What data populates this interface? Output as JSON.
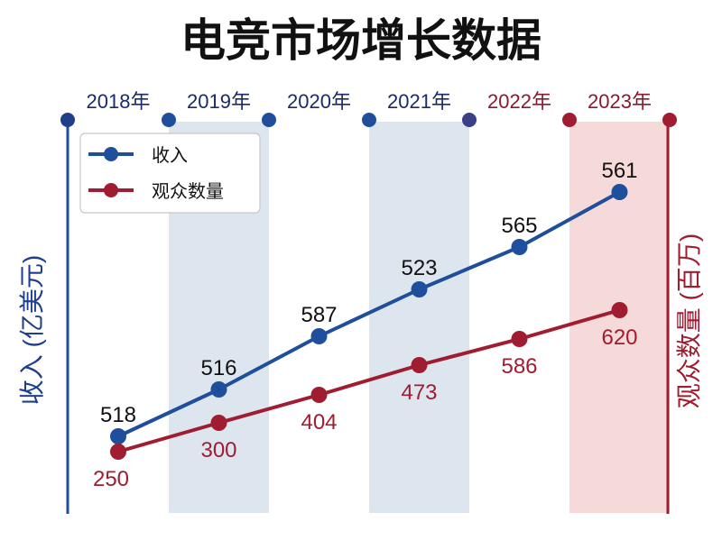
{
  "title": "电竞市场增长数据",
  "colors": {
    "revenue": "#1f4e9c",
    "audience": "#a01c30",
    "band_blue": "#dde6ef",
    "band_red": "#f6d9d9",
    "year_text_blue": "#1a2a6c",
    "year_text_red": "#8b1a2b"
  },
  "chart_data": {
    "type": "line",
    "title": "电竞市场增长数据",
    "categories": [
      "2018年",
      "2019年",
      "2020年",
      "2021年",
      "2022年",
      "2023年"
    ],
    "y_left_label": "收入 (亿美元)",
    "y_right_label": "观众数量 (百万)",
    "series": [
      {
        "name": "收入",
        "axis": "left",
        "values": [
          518,
          516,
          587,
          523,
          565,
          561
        ],
        "color": "#1f4e9c"
      },
      {
        "name": "观众数量",
        "axis": "right",
        "values": [
          250,
          300,
          404,
          473,
          586,
          620
        ],
        "color": "#a01c30"
      }
    ],
    "highlighted_category_bands": [
      "2019年",
      "2021年",
      "2023年"
    ],
    "legend_position": "top-left",
    "grid": false
  }
}
